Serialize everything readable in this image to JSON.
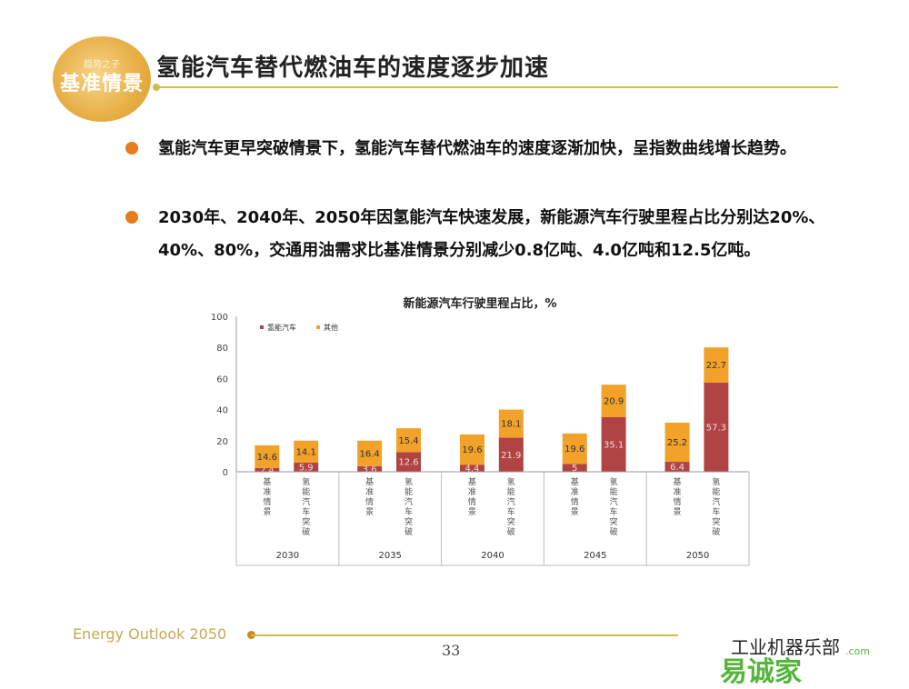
{
  "logo": {
    "small_text": "趋势之子",
    "text": "基准情景"
  },
  "title": "氢能汽车替代燃油车的速度逐步加速",
  "bullets": [
    "氢能汽车更早突破情景下，氢能汽车替代燃油车的速度逐渐加快，呈指数曲线增长趋势。",
    "2030年、2040年、2050年因氢能汽车快速发展，新能源汽车行驶里程占比分别达20%、40%、80%，交通用油需求比基准情景分别减少0.8亿吨、4.0亿吨和12.5亿吨。"
  ],
  "colors": {
    "accent": "#c9bf4a",
    "hydrogen": "#b04444",
    "other": "#f2a129",
    "bullet": "#e67a1c"
  },
  "chart_data": {
    "type": "bar",
    "stacked": true,
    "title": "新能源汽车行驶里程占比，%",
    "ylim": [
      0,
      100
    ],
    "yticks": [
      0,
      20,
      40,
      60,
      80,
      100
    ],
    "grid": false,
    "legend_position": "top-left",
    "groups": [
      "2030",
      "2035",
      "2040",
      "2045",
      "2050"
    ],
    "categories": [
      "基准情景",
      "氢能汽车突破",
      "基准情景",
      "氢能汽车突破",
      "基准情景",
      "氢能汽车突破",
      "基准情景",
      "氢能汽车突破",
      "基准情景",
      "氢能汽车突破"
    ],
    "series": [
      {
        "name": "氢能汽车",
        "values": [
          2.4,
          5.9,
          3.6,
          12.6,
          4.4,
          21.9,
          5,
          35.1,
          6.4,
          57.3
        ],
        "labels": [
          "2.4",
          "5.9",
          "3.6",
          "12.6",
          "4.4",
          "21.9",
          "5",
          "35.1",
          "6.4",
          "57.3"
        ]
      },
      {
        "name": "其他",
        "values": [
          14.6,
          14.1,
          16.4,
          15.4,
          19.6,
          18.1,
          19.6,
          20.9,
          25.2,
          22.7
        ],
        "labels": [
          "14.6",
          "14.1",
          "16.4",
          "15.4",
          "19.6",
          "18.1",
          "19.6",
          "20.9",
          "25.2",
          "22.7"
        ]
      }
    ]
  },
  "footer": {
    "text": "Energy Outlook 2050",
    "page": "33"
  },
  "watermark": {
    "text": "工业机器乐部",
    "brand": "易诚家",
    "domain": ".com"
  }
}
